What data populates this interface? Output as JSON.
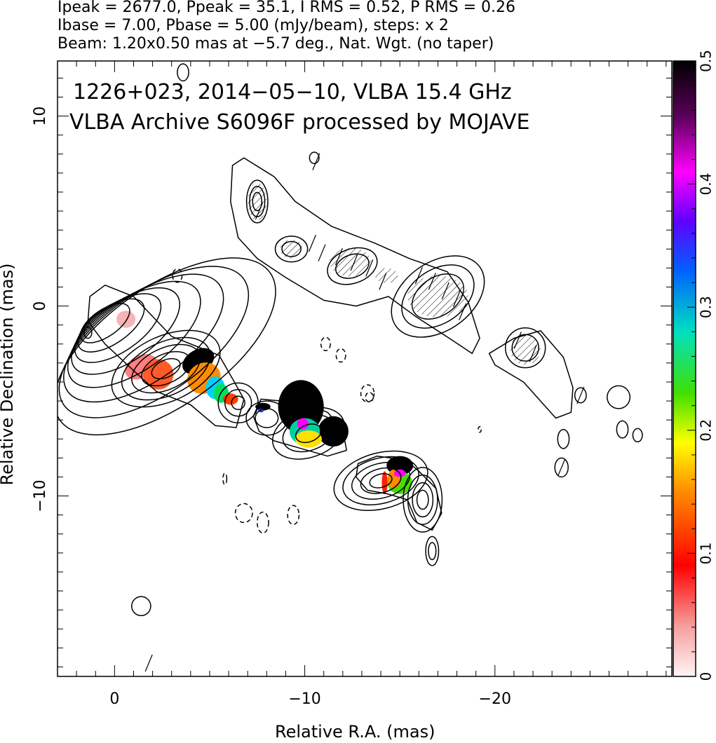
{
  "header": {
    "line1": "Ipeak = 2677.0, Ppeak = 35.1, I RMS = 0.52, P RMS = 0.26",
    "line2": "Ibase = 7.00, Pbase = 5.00 (mJy/beam), steps: x 2",
    "line3": "Beam: 1.20x0.50 mas at −5.7 deg., Nat. Wgt. (no taper)"
  },
  "chart_data": {
    "type": "heatmap",
    "title": "1226+023, 2014−05−10, VLBA 15.4 GHz",
    "subtitle": "VLBA Archive S6096F processed by MOJAVE",
    "xlabel": "Relative R.A. (mas)",
    "ylabel": "Relative Declination (mas)",
    "xlim": [
      3,
      -29.3
    ],
    "ylim": [
      -19.5,
      12.9
    ],
    "x_ticks": [
      0,
      -10,
      -20
    ],
    "x_tick_labels": [
      "0",
      "−10",
      "−20"
    ],
    "y_ticks": [
      10,
      0,
      -10
    ],
    "y_tick_labels": [
      "10",
      "0",
      "−10"
    ],
    "colorbar": {
      "range": [
        0,
        0.5
      ],
      "ticks": [
        0,
        0.1,
        0.2,
        0.3,
        0.4,
        0.5
      ],
      "tick_labels": [
        "0",
        "0.1",
        "0.2",
        "0.3",
        "0.4",
        "0.5"
      ]
    },
    "core_contours": {
      "center": [
        0.5,
        -0.9
      ],
      "semi_axes": [
        1.5,
        0.7
      ],
      "angle_deg": -35,
      "scales": [
        1,
        1.35,
        1.75,
        2.2,
        2.7,
        3.25,
        3.85,
        4.5
      ]
    },
    "jet_contours": [
      {
        "cx": -2.7,
        "cy": -3.3,
        "rx": 0.8,
        "ry": 0.45,
        "angle": -25,
        "levels": [
          1,
          1.7,
          2.4,
          3.1,
          3.8
        ]
      },
      {
        "cx": -6.5,
        "cy": -5.1,
        "rx": 0.35,
        "ry": 0.35,
        "angle": 0,
        "levels": [
          1,
          2,
          3
        ]
      },
      {
        "cx": -8,
        "cy": -5.9,
        "rx": 0.6,
        "ry": 0.5,
        "angle": 0,
        "levels": [
          1,
          1.8
        ]
      },
      {
        "cx": -10.2,
        "cy": -6.7,
        "rx": 0.7,
        "ry": 0.45,
        "angle": -20,
        "levels": [
          1,
          2,
          2.8
        ]
      },
      {
        "cx": -14,
        "cy": -9.2,
        "rx": 0.6,
        "ry": 0.35,
        "angle": -15,
        "levels": [
          1,
          1.8,
          2.6,
          3.4,
          4.2
        ]
      },
      {
        "cx": -16.2,
        "cy": -10.2,
        "rx": 0.3,
        "ry": 0.5,
        "angle": 0,
        "levels": [
          1,
          1.8,
          2.6,
          3.4
        ]
      },
      {
        "cx": -16.7,
        "cy": -12.9,
        "rx": 0.2,
        "ry": 0.45,
        "angle": 0,
        "levels": [
          1,
          1.7
        ]
      },
      {
        "cx": -7.5,
        "cy": 5.5,
        "rx": 0.4,
        "ry": 0.8,
        "angle": 0,
        "levels": [
          0.6,
          1,
          1.4
        ]
      },
      {
        "cx": -9.3,
        "cy": 3.0,
        "rx": 0.5,
        "ry": 0.4,
        "angle": 0,
        "levels": [
          1,
          1.7
        ]
      },
      {
        "cx": -12.5,
        "cy": 2.1,
        "rx": 0.9,
        "ry": 0.6,
        "angle": -20,
        "levels": [
          1,
          1.5
        ]
      },
      {
        "cx": -17,
        "cy": 0.5,
        "rx": 1.5,
        "ry": 1.0,
        "angle": -35,
        "levels": [
          1,
          1.4,
          1.8
        ]
      },
      {
        "cx": -21.6,
        "cy": -2.2,
        "rx": 0.7,
        "ry": 0.7,
        "angle": 0,
        "levels": [
          1,
          1.5
        ]
      },
      {
        "cx": -1.4,
        "cy": -15.8,
        "rx": 0.5,
        "ry": 0.5,
        "angle": 0,
        "levels": [
          1
        ]
      },
      {
        "cx": 1.4,
        "cy": -1.4,
        "rx": 0.2,
        "ry": 0.3,
        "angle": 0,
        "levels": [
          1
        ]
      },
      {
        "cx": -24.5,
        "cy": -4.7,
        "rx": 0.3,
        "ry": 0.4,
        "angle": 0,
        "levels": [
          1
        ]
      },
      {
        "cx": -26.5,
        "cy": -4.8,
        "rx": 0.6,
        "ry": 0.6,
        "angle": 0,
        "levels": [
          1
        ]
      },
      {
        "cx": -26.7,
        "cy": -6.5,
        "rx": 0.3,
        "ry": 0.45,
        "angle": 0,
        "levels": [
          1
        ]
      },
      {
        "cx": -27.5,
        "cy": -6.8,
        "rx": 0.25,
        "ry": 0.35,
        "angle": 0,
        "levels": [
          1
        ]
      },
      {
        "cx": -23.6,
        "cy": -7.0,
        "rx": 0.3,
        "ry": 0.5,
        "angle": 0,
        "levels": [
          1
        ]
      },
      {
        "cx": -23.5,
        "cy": -8.5,
        "rx": 0.35,
        "ry": 0.5,
        "angle": 0,
        "levels": [
          1
        ]
      },
      {
        "cx": -10.5,
        "cy": 7.8,
        "rx": 0.25,
        "ry": 0.3,
        "angle": 0,
        "levels": [
          1
        ]
      },
      {
        "cx": -3.6,
        "cy": 12.3,
        "rx": 0.3,
        "ry": 0.45,
        "angle": 0,
        "levels": [
          1
        ]
      }
    ],
    "outer_envelopes": [
      [
        [
          1.3,
          0.5
        ],
        [
          0.5,
          1.1
        ],
        [
          -1.0,
          0.5
        ],
        [
          -3.0,
          -1.6
        ],
        [
          -5.5,
          -2.6
        ],
        [
          -6.3,
          -4.0
        ],
        [
          -6.8,
          -4.9
        ],
        [
          -6.4,
          -6.4
        ],
        [
          -5.3,
          -6.3
        ],
        [
          -4.0,
          -5.2
        ],
        [
          -2.2,
          -4.5
        ],
        [
          -1.0,
          -3.4
        ],
        [
          0.5,
          -2.0
        ],
        [
          1.4,
          -0.8
        ]
      ],
      [
        [
          -7.7,
          -4.9
        ],
        [
          -8.8,
          -5.0
        ],
        [
          -9.5,
          -4.9
        ],
        [
          -11.2,
          -5.6
        ],
        [
          -12.0,
          -6.5
        ],
        [
          -12.2,
          -7.6
        ],
        [
          -11.2,
          -7.9
        ],
        [
          -9.8,
          -7.5
        ],
        [
          -8.4,
          -7.1
        ],
        [
          -7.6,
          -6.6
        ],
        [
          -7.3,
          -5.8
        ]
      ],
      [
        [
          -12.8,
          -8.3
        ],
        [
          -13.8,
          -7.9
        ],
        [
          -15.3,
          -8.1
        ],
        [
          -16.0,
          -8.7
        ],
        [
          -16.9,
          -9.6
        ],
        [
          -17.2,
          -10.9
        ],
        [
          -16.7,
          -11.8
        ],
        [
          -15.9,
          -11.4
        ],
        [
          -15.4,
          -10.2
        ],
        [
          -14.4,
          -9.9
        ],
        [
          -13.3,
          -9.7
        ],
        [
          -12.7,
          -9.0
        ]
      ],
      [
        [
          -6.2,
          7.4
        ],
        [
          -6.8,
          7.8
        ],
        [
          -8.4,
          6.8
        ],
        [
          -9.5,
          5.5
        ],
        [
          -11.4,
          4.2
        ],
        [
          -13.7,
          3.3
        ],
        [
          -15.5,
          2.5
        ],
        [
          -17.5,
          1.8
        ],
        [
          -18.6,
          0.2
        ],
        [
          -19.2,
          -1.7
        ],
        [
          -18.8,
          -2.5
        ],
        [
          -17.6,
          -1.7
        ],
        [
          -15.9,
          -0.6
        ],
        [
          -14.4,
          0.5
        ],
        [
          -12.7,
          0.0
        ],
        [
          -11.0,
          0.3
        ],
        [
          -9.0,
          1.5
        ],
        [
          -7.5,
          2.5
        ],
        [
          -6.5,
          3.6
        ],
        [
          -6.1,
          5.5
        ]
      ],
      [
        [
          -19.7,
          -2.5
        ],
        [
          -21.0,
          -1.7
        ],
        [
          -22.4,
          -1.3
        ],
        [
          -23.6,
          -2.7
        ],
        [
          -24.1,
          -4.3
        ],
        [
          -24.0,
          -5.6
        ],
        [
          -23.2,
          -5.9
        ],
        [
          -21.5,
          -4.0
        ],
        [
          -20.0,
          -3.1
        ]
      ]
    ],
    "negative_contours": [
      {
        "cx": -3.3,
        "cy": 1.6,
        "rx": 0.25,
        "ry": 0.35
      },
      {
        "cx": -11.1,
        "cy": -2.0,
        "rx": 0.25,
        "ry": 0.35
      },
      {
        "cx": -11.9,
        "cy": -2.6,
        "rx": 0.25,
        "ry": 0.35
      },
      {
        "cx": -13.3,
        "cy": -4.6,
        "rx": 0.35,
        "ry": 0.45
      },
      {
        "cx": -13.4,
        "cy": -4.8,
        "rx": 0.2,
        "ry": 0.25
      },
      {
        "cx": -6.8,
        "cy": -10.9,
        "rx": 0.45,
        "ry": 0.5
      },
      {
        "cx": -7.8,
        "cy": -11.4,
        "rx": 0.3,
        "ry": 0.55
      },
      {
        "cx": -9.4,
        "cy": -11.0,
        "rx": 0.3,
        "ry": 0.5
      },
      {
        "cx": -5.8,
        "cy": -9.1,
        "rx": 0.1,
        "ry": 0.3
      },
      {
        "cx": -19.2,
        "cy": -6.5,
        "rx": 0.08,
        "ry": 0.15
      }
    ],
    "polarization_blobs": [
      {
        "cx": -1.4,
        "cy": -3.2,
        "rx": 0.9,
        "ry": 0.6,
        "angle": -25,
        "color": "#ff8080"
      },
      {
        "cx": -0.6,
        "cy": -0.7,
        "rx": 0.5,
        "ry": 0.45,
        "angle": 0,
        "color": "#f6b4b4"
      },
      {
        "cx": -2.3,
        "cy": -3.6,
        "rx": 0.8,
        "ry": 0.8,
        "angle": 0,
        "color": "#ff5a2a"
      },
      {
        "cx": -4.4,
        "cy": -2.9,
        "rx": 0.9,
        "ry": 0.6,
        "angle": -30,
        "color": "#000000"
      },
      {
        "cx": -4.7,
        "cy": -3.8,
        "rx": 0.9,
        "ry": 0.8,
        "angle": -30,
        "color": "#ff8c00"
      },
      {
        "cx": -5.3,
        "cy": -4.3,
        "rx": 0.5,
        "ry": 0.6,
        "angle": 0,
        "color": "#00d0ff"
      },
      {
        "cx": -5.6,
        "cy": -4.6,
        "rx": 0.4,
        "ry": 0.5,
        "angle": 0,
        "color": "#00e060"
      },
      {
        "cx": -6.1,
        "cy": -4.9,
        "rx": 0.4,
        "ry": 0.3,
        "angle": 0,
        "color": "#ff4000"
      },
      {
        "cx": -9.8,
        "cy": -5.3,
        "rx": 1.2,
        "ry": 1.4,
        "angle": 0,
        "color": "#000000"
      },
      {
        "cx": -11.5,
        "cy": -6.6,
        "rx": 0.8,
        "ry": 0.8,
        "angle": 0,
        "color": "#000000"
      },
      {
        "cx": -10.0,
        "cy": -6.6,
        "rx": 0.8,
        "ry": 0.7,
        "angle": 0,
        "color": "#00d0a0"
      },
      {
        "cx": -10.2,
        "cy": -7.0,
        "rx": 0.7,
        "ry": 0.45,
        "angle": 0,
        "color": "#ffe000"
      },
      {
        "cx": -9.9,
        "cy": -6.2,
        "rx": 0.3,
        "ry": 0.3,
        "angle": 0,
        "color": "#ff00ff"
      },
      {
        "cx": -7.8,
        "cy": -5.3,
        "rx": 0.4,
        "ry": 0.2,
        "angle": 0,
        "color": "#000000"
      },
      {
        "cx": -7.7,
        "cy": -5.5,
        "rx": 0.15,
        "ry": 0.1,
        "angle": 0,
        "color": "#2040ff"
      },
      {
        "cx": -15.0,
        "cy": -8.4,
        "rx": 0.7,
        "ry": 0.5,
        "angle": 0,
        "color": "#000000"
      },
      {
        "cx": -15.0,
        "cy": -9.3,
        "rx": 0.65,
        "ry": 0.6,
        "angle": 0,
        "color": "#40e000"
      },
      {
        "cx": -14.7,
        "cy": -9.1,
        "rx": 0.35,
        "ry": 0.5,
        "angle": 0,
        "color": "#ff8c00"
      },
      {
        "cx": -14.2,
        "cy": -9.3,
        "rx": 0.15,
        "ry": 0.6,
        "angle": 0,
        "color": "#ff2000"
      },
      {
        "cx": -15.0,
        "cy": -8.8,
        "rx": 0.3,
        "ry": 0.2,
        "angle": 0,
        "color": "#ff00ff"
      }
    ],
    "hatched_regions": [
      {
        "cx": -7.5,
        "cy": 5.5,
        "rx": 0.5,
        "ry": 1.0
      },
      {
        "cx": -9.3,
        "cy": 3.0,
        "rx": 0.6,
        "ry": 0.5
      },
      {
        "cx": -12.4,
        "cy": 2.3,
        "rx": 1.1,
        "ry": 0.75
      },
      {
        "cx": -14.3,
        "cy": 1.6,
        "rx": 0.6,
        "ry": 0.4
      },
      {
        "cx": -17.0,
        "cy": 0.5,
        "rx": 1.6,
        "ry": 1.1
      },
      {
        "cx": -21.6,
        "cy": -2.3,
        "rx": 0.8,
        "ry": 0.8
      }
    ],
    "evpa_ticks": [
      [
        -10.4,
        3.3
      ],
      [
        -10.9,
        2.8
      ],
      [
        -11.8,
        2.6
      ],
      [
        -12.6,
        2.3
      ],
      [
        -13.4,
        2.0
      ],
      [
        -14.1,
        1.3
      ],
      [
        -16.0,
        1.6
      ],
      [
        -16.7,
        1.3
      ],
      [
        -17.4,
        0.8
      ],
      [
        -18.0,
        0.4
      ],
      [
        -18.3,
        -0.3
      ],
      [
        -7.6,
        5.0
      ],
      [
        -10.6,
        7.6
      ],
      [
        -21.2,
        -1.8
      ],
      [
        -22.0,
        -2.5
      ],
      [
        -23.5,
        -8.5
      ],
      [
        -24.5,
        -4.7
      ],
      [
        -1.8,
        -18.8
      ]
    ]
  }
}
